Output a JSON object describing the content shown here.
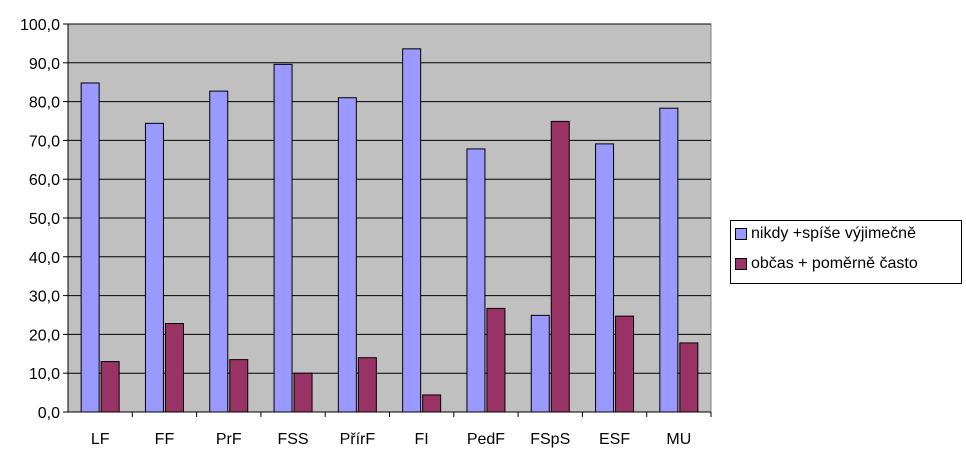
{
  "chart_data": {
    "type": "bar",
    "categories": [
      "LF",
      "FF",
      "PrF",
      "FSS",
      "PřírF",
      "FI",
      "PedF",
      "FSpS",
      "ESF",
      "MU"
    ],
    "series": [
      {
        "name": "nikdy +spíše výjimečně",
        "color": "#9999ff",
        "values": [
          84.8,
          74.4,
          82.7,
          89.6,
          81.0,
          93.6,
          67.8,
          24.9,
          69.1,
          78.3
        ]
      },
      {
        "name": "občas + poměrně často",
        "color": "#993366",
        "values": [
          13.0,
          22.8,
          13.5,
          10.0,
          14.0,
          4.4,
          26.7,
          74.9,
          24.7,
          17.8
        ]
      }
    ],
    "yticks": [
      "0,0",
      "10,0",
      "20,0",
      "30,0",
      "40,0",
      "50,0",
      "60,0",
      "70,0",
      "80,0",
      "90,0",
      "100,0"
    ],
    "ylim": [
      0,
      100
    ],
    "plot_background": "#c0c0c0",
    "grid": true,
    "legend_position": "right"
  }
}
